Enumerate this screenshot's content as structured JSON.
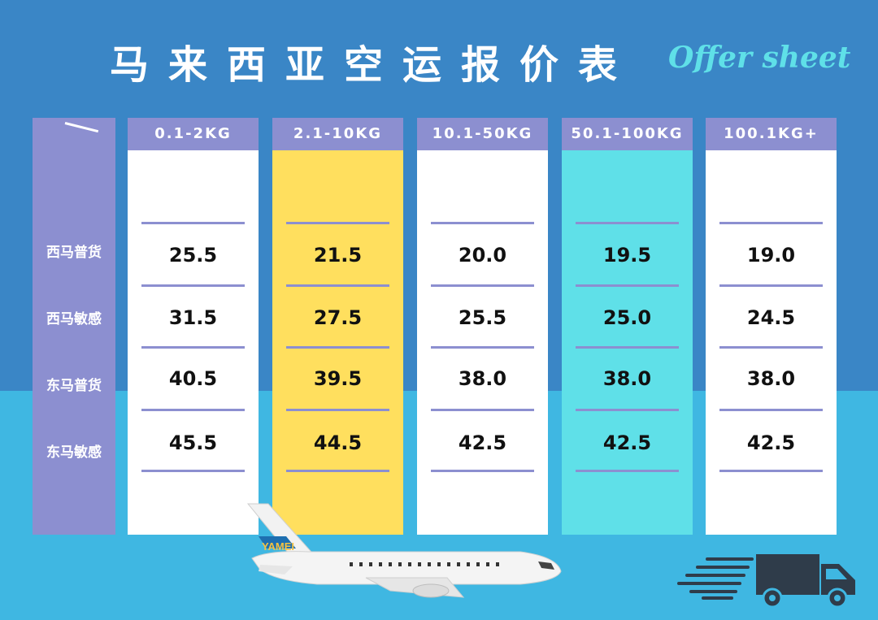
{
  "title": "马来西亚空运报价表",
  "subtitle": "Offer sheet",
  "row_labels": [
    "西马普货",
    "西马敏感",
    "东马普货",
    "东马敏感"
  ],
  "columns": [
    {
      "header": "0.1-2KG",
      "bg": "#ffffff",
      "values": [
        "25.5",
        "31.5",
        "40.5",
        "45.5"
      ]
    },
    {
      "header": "2.1-10KG",
      "bg": "#ffdf5e",
      "values": [
        "21.5",
        "27.5",
        "39.5",
        "44.5"
      ]
    },
    {
      "header": "10.1-50KG",
      "bg": "#ffffff",
      "values": [
        "20.0",
        "25.5",
        "38.0",
        "42.5"
      ]
    },
    {
      "header": "50.1-100KG",
      "bg": "#5fe0e8",
      "values": [
        "19.5",
        "25.0",
        "38.0",
        "42.5"
      ]
    },
    {
      "header": "100.1KG+",
      "bg": "#ffffff",
      "values": [
        "19.0",
        "24.5",
        "38.0",
        "42.5"
      ]
    }
  ],
  "airplane_logo": "YAMEI",
  "icons": [
    "airplane-icon",
    "delivery-truck-icon"
  ],
  "colors": {
    "background_top": "#3a86c6",
    "background_bottom": "#3fb7e2",
    "header": "#8c8fd0",
    "highlight_yellow": "#ffdf5e",
    "highlight_cyan": "#5fe0e8"
  }
}
